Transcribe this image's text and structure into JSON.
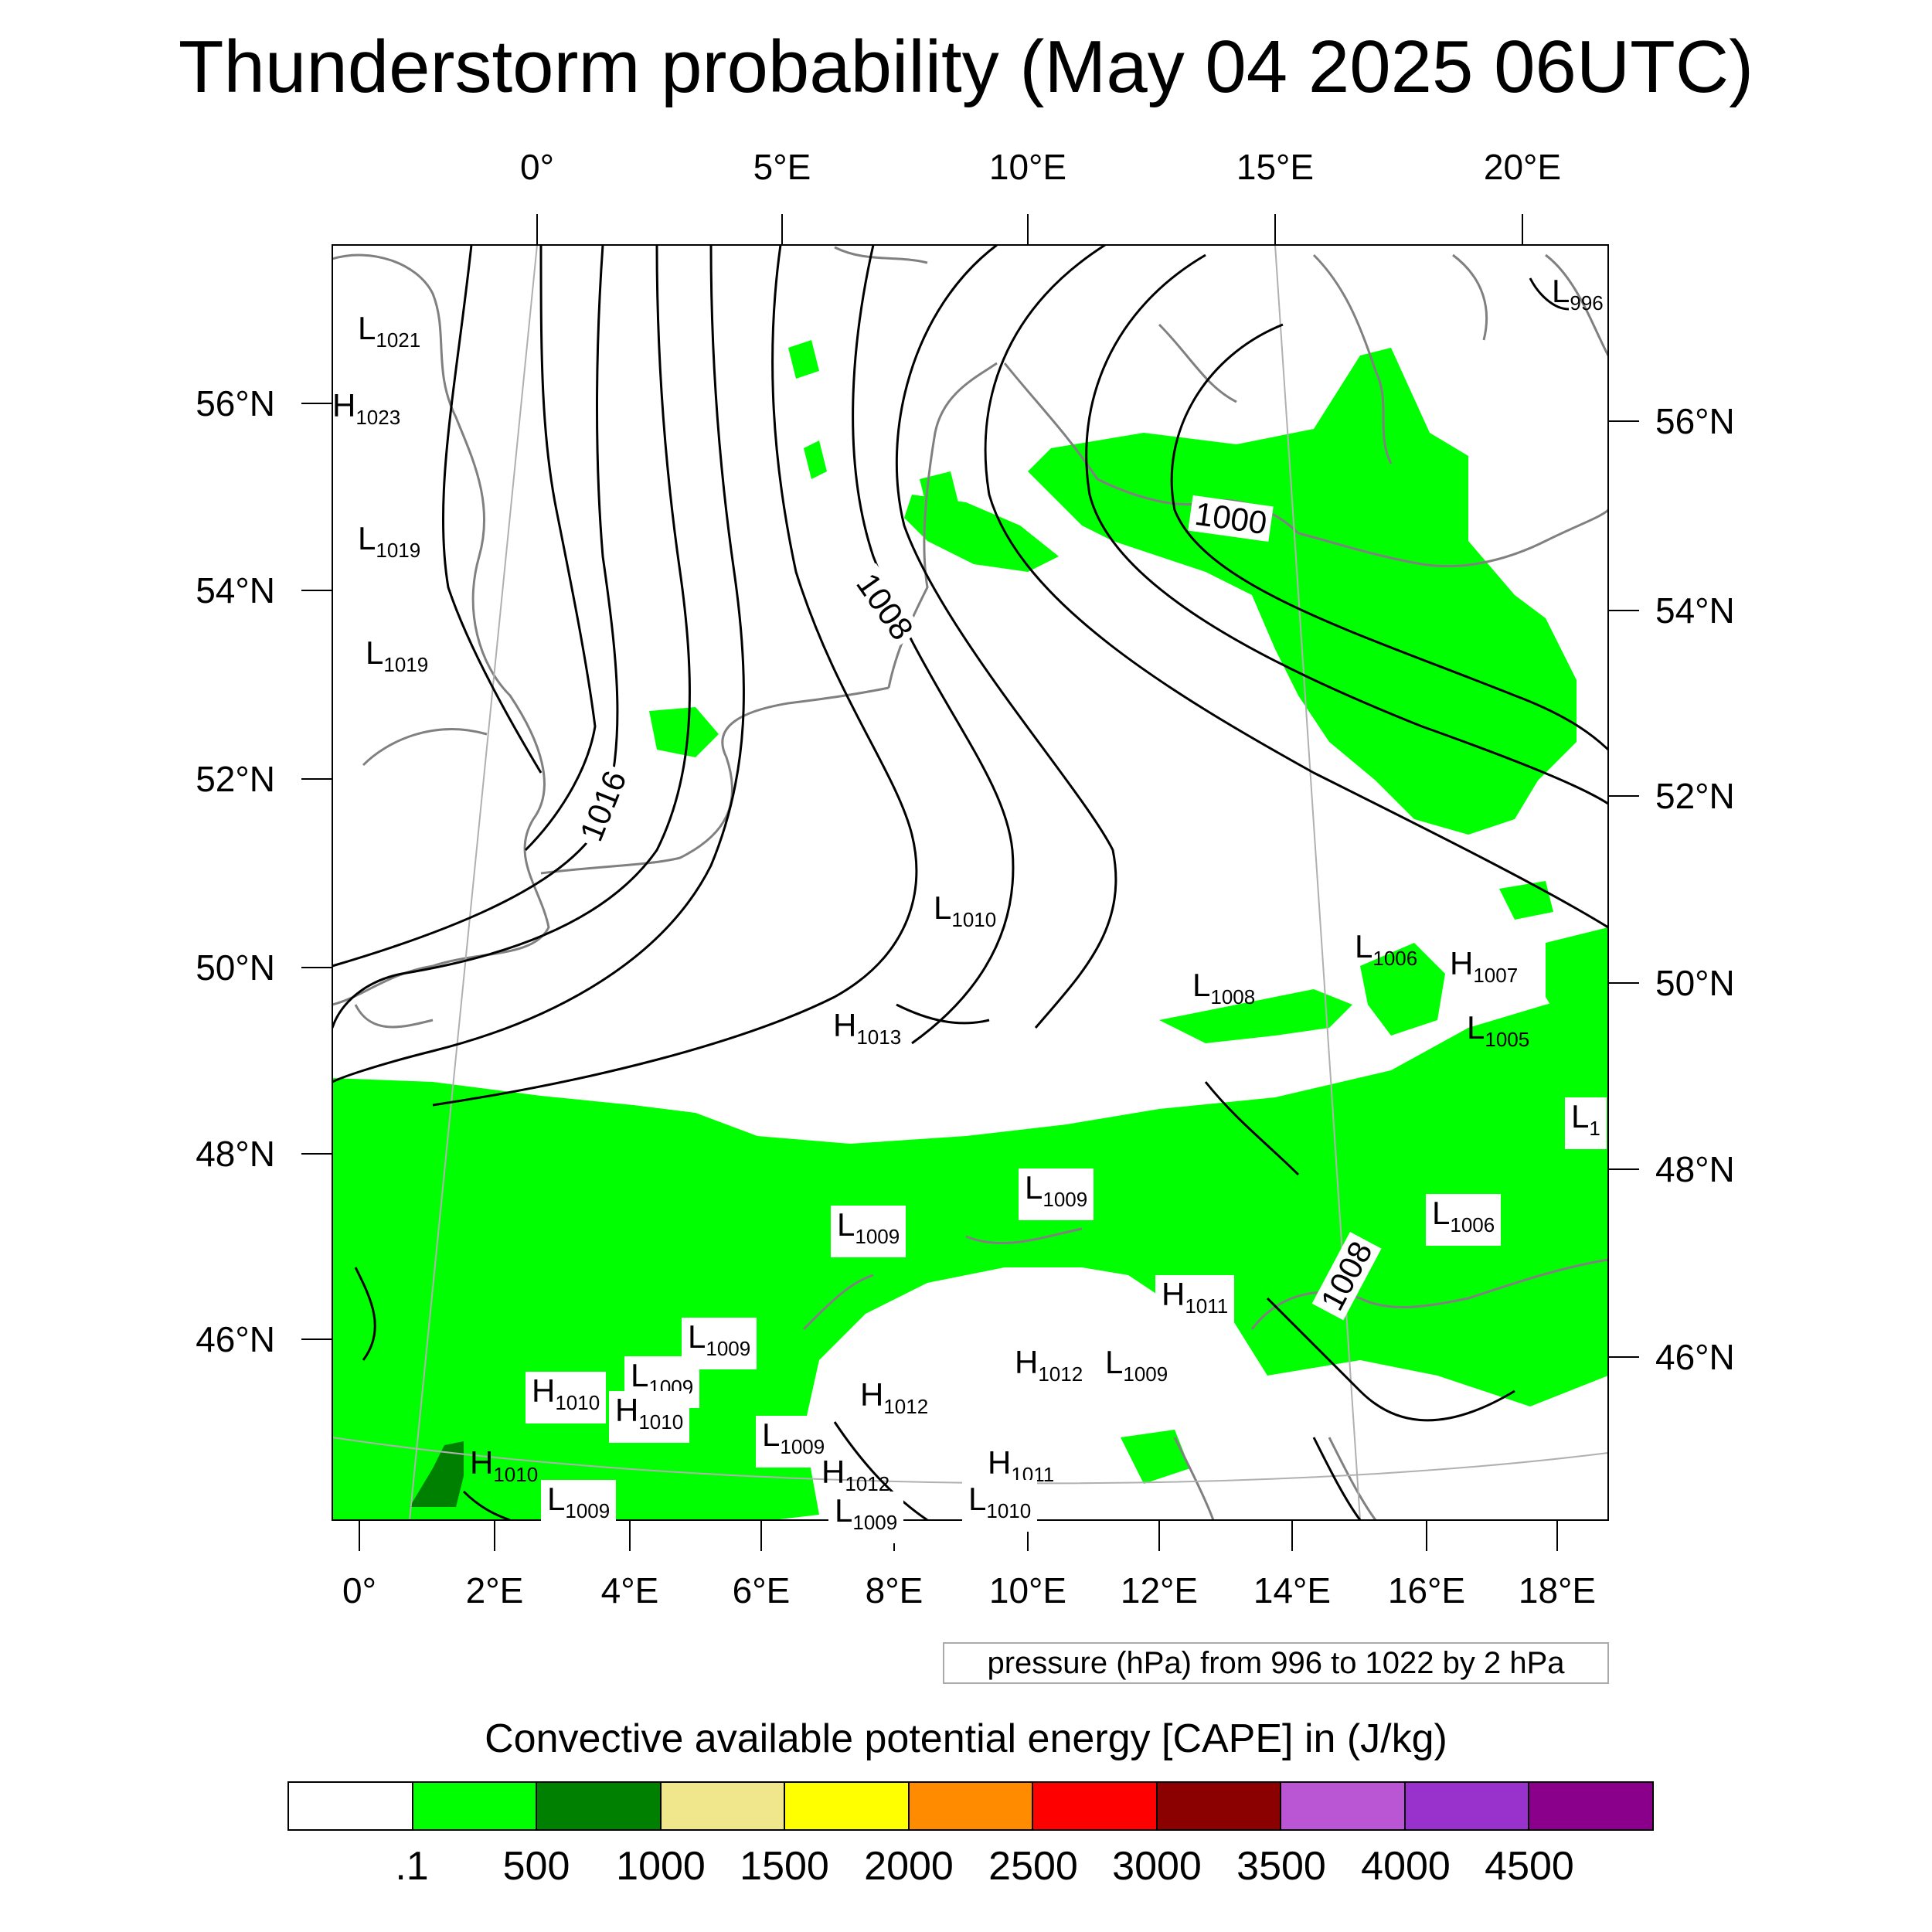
{
  "title": "Thunderstorm probability (May 04 2025 06UTC)",
  "top_lon_labels": [
    "0°",
    "5°E",
    "10°E",
    "15°E",
    "20°E"
  ],
  "bottom_lon_labels": [
    "0°",
    "2°E",
    "4°E",
    "6°E",
    "8°E",
    "10°E",
    "12°E",
    "14°E",
    "16°E",
    "18°E"
  ],
  "left_lat_labels": [
    "56°N",
    "54°N",
    "52°N",
    "50°N",
    "48°N",
    "46°N"
  ],
  "right_lat_labels": [
    "56°N",
    "54°N",
    "52°N",
    "50°N",
    "48°N",
    "46°N"
  ],
  "pressure_centers": [
    {
      "type": "L",
      "value": "1021"
    },
    {
      "type": "H",
      "value": "1023"
    },
    {
      "type": "L",
      "value": "1019"
    },
    {
      "type": "L",
      "value": "1019"
    },
    {
      "type": "L",
      "value": "996"
    },
    {
      "type": "L",
      "value": "1010"
    },
    {
      "type": "H",
      "value": "1013"
    },
    {
      "type": "L",
      "value": "1008"
    },
    {
      "type": "L",
      "value": "1006"
    },
    {
      "type": "H",
      "value": "1007"
    },
    {
      "type": "L",
      "value": "1005"
    },
    {
      "type": "L",
      "value": "1"
    },
    {
      "type": "L",
      "value": "1009"
    },
    {
      "type": "L",
      "value": "1009"
    },
    {
      "type": "L",
      "value": "1006"
    },
    {
      "type": "H",
      "value": "1011"
    },
    {
      "type": "L",
      "value": "1009"
    },
    {
      "type": "L",
      "value": "1009"
    },
    {
      "type": "H",
      "value": "1012"
    },
    {
      "type": "L",
      "value": "1009"
    },
    {
      "type": "H",
      "value": "1010"
    },
    {
      "type": "H",
      "value": "1010"
    },
    {
      "type": "H",
      "value": "1012"
    },
    {
      "type": "L",
      "value": "1009"
    },
    {
      "type": "H",
      "value": "1012"
    },
    {
      "type": "H",
      "value": "1011"
    },
    {
      "type": "H",
      "value": "1010"
    },
    {
      "type": "L",
      "value": "1009"
    },
    {
      "type": "L",
      "value": "1009"
    },
    {
      "type": "L",
      "value": "1010"
    }
  ],
  "isobar_labels": [
    "1000",
    "1008",
    "1016",
    "1008"
  ],
  "info_text": "pressure (hPa) from 996 to 1022 by 2 hPa",
  "colorbar": {
    "title": "Convective available potential energy [CAPE] in (J/kg)",
    "colors": [
      "#ffffff",
      "#00ff00",
      "#008000",
      "#f0e68c",
      "#ffff00",
      "#ff8c00",
      "#ff0000",
      "#8b0000",
      "#ba55d3",
      "#9932cc",
      "#8b008b"
    ],
    "tick_labels": [
      ".1",
      "500",
      "1000",
      "1500",
      "2000",
      "2500",
      "3000",
      "3500",
      "4000",
      "4500"
    ]
  },
  "colors": {
    "cape_low": "#00ff00",
    "cape_mid": "#008000",
    "coastline": "#808080",
    "isobar": "#000000"
  }
}
